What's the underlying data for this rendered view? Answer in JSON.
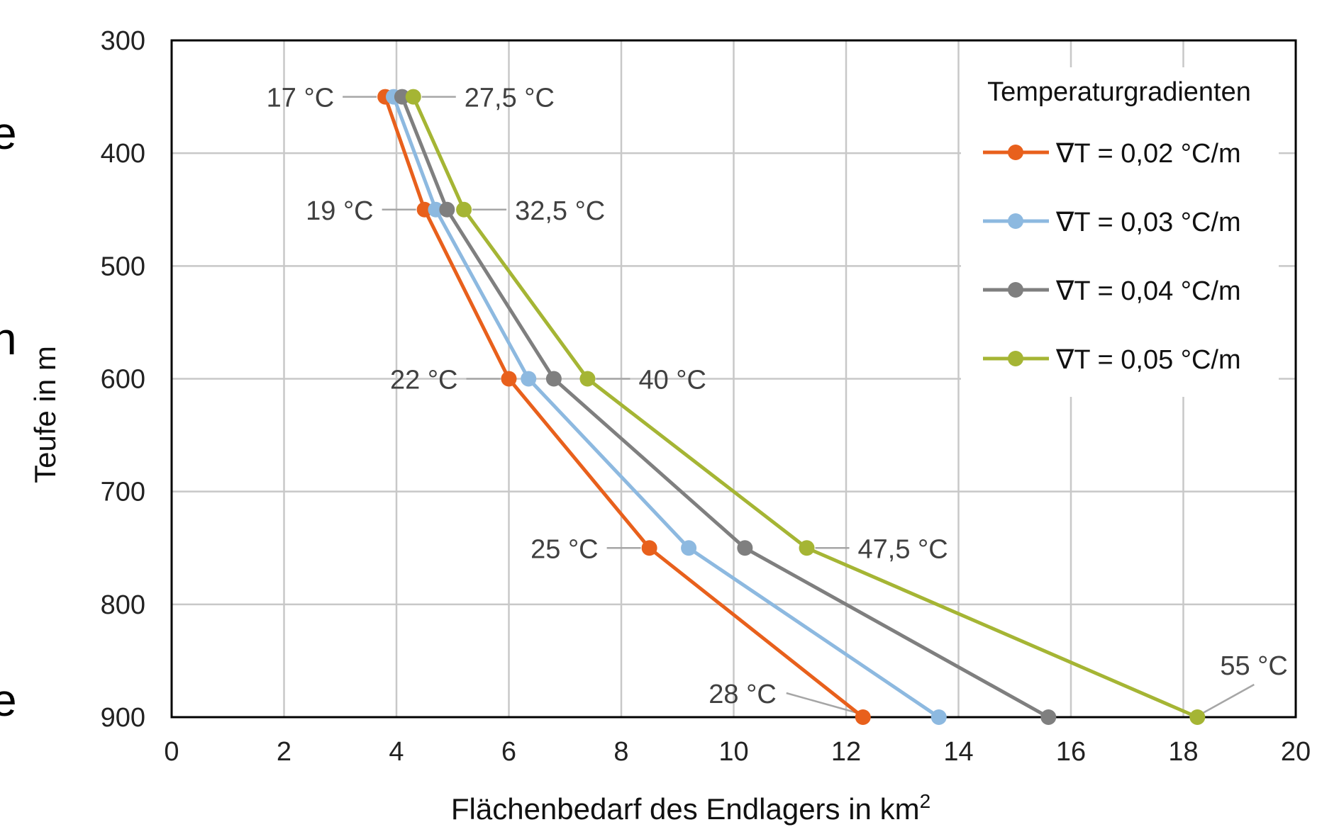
{
  "page_fragments": [
    "e",
    "n",
    "e"
  ],
  "chart_data": {
    "type": "line",
    "xlabel": "Flächenbedarf des Endlagers in km",
    "xlabel_superscript": "2",
    "ylabel": "Teufe in m",
    "xlim": [
      0,
      20
    ],
    "ylim": [
      300,
      900
    ],
    "y_inverted": true,
    "x_ticks": [
      "0",
      "2",
      "4",
      "6",
      "8",
      "10",
      "12",
      "14",
      "16",
      "18",
      "20"
    ],
    "y_ticks": [
      "300",
      "400",
      "500",
      "600",
      "700",
      "800",
      "900"
    ],
    "grid": true,
    "legend": {
      "title": "Temperaturgradienten",
      "position": "top-right"
    },
    "series": [
      {
        "name": "∇T = 0,02 °C/m",
        "color": "#E8601C",
        "points": [
          [
            3.8,
            350
          ],
          [
            4.5,
            450
          ],
          [
            6.0,
            600
          ],
          [
            8.5,
            750
          ],
          [
            12.3,
            900
          ]
        ]
      },
      {
        "name": "∇T = 0,03 °C/m",
        "color": "#8DB9E0",
        "points": [
          [
            3.95,
            350
          ],
          [
            4.7,
            450
          ],
          [
            6.35,
            600
          ],
          [
            9.2,
            750
          ],
          [
            13.65,
            900
          ]
        ]
      },
      {
        "name": "∇T = 0,04 °C/m",
        "color": "#7F7F7F",
        "points": [
          [
            4.1,
            350
          ],
          [
            4.9,
            450
          ],
          [
            6.8,
            600
          ],
          [
            10.2,
            750
          ],
          [
            15.6,
            900
          ]
        ]
      },
      {
        "name": "∇T = 0,05 °C/m",
        "color": "#A5B534",
        "points": [
          [
            4.3,
            350
          ],
          [
            5.2,
            450
          ],
          [
            7.4,
            600
          ],
          [
            11.3,
            750
          ],
          [
            18.25,
            900
          ]
        ]
      }
    ],
    "annotations": [
      {
        "text": "17 °C",
        "x": 3.8,
        "y": 350,
        "side": "left"
      },
      {
        "text": "27,5 °C",
        "x": 4.3,
        "y": 350,
        "side": "right"
      },
      {
        "text": "19 °C",
        "x": 4.5,
        "y": 450,
        "side": "left"
      },
      {
        "text": "32,5 °C",
        "x": 5.2,
        "y": 450,
        "side": "right"
      },
      {
        "text": "22 °C",
        "x": 6.0,
        "y": 600,
        "side": "left"
      },
      {
        "text": "40 °C",
        "x": 7.4,
        "y": 600,
        "side": "right"
      },
      {
        "text": "25 °C",
        "x": 8.5,
        "y": 750,
        "side": "left"
      },
      {
        "text": "47,5 °C",
        "x": 11.3,
        "y": 750,
        "side": "right"
      },
      {
        "text": "28 °C",
        "x": 12.3,
        "y": 900,
        "side": "upper-left"
      },
      {
        "text": "55 °C",
        "x": 18.25,
        "y": 900,
        "side": "upper-right"
      }
    ]
  }
}
